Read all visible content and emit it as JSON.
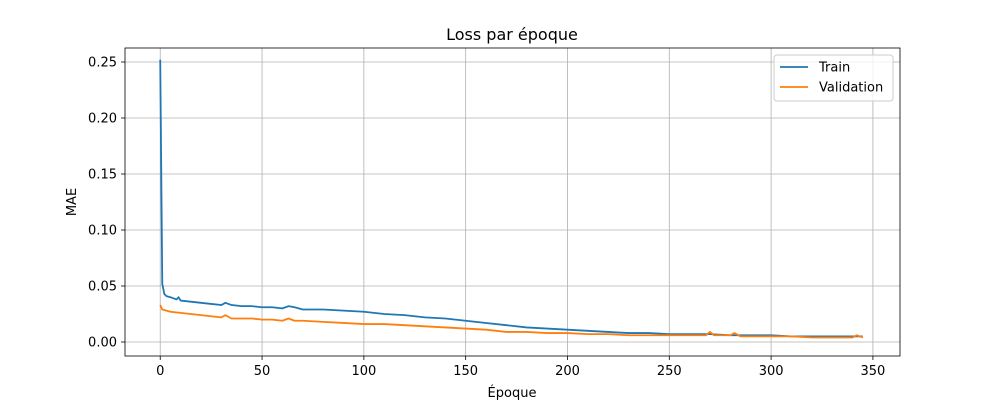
{
  "chart_data": {
    "type": "line",
    "title": "Loss par époque",
    "xlabel": "Époque",
    "ylabel": "MAE",
    "xlim": [
      -17.3,
      363.3
    ],
    "ylim": [
      -0.0125,
      0.2625
    ],
    "xticks": [
      0,
      50,
      100,
      150,
      200,
      250,
      300,
      350
    ],
    "yticks": [
      0.0,
      0.05,
      0.1,
      0.15,
      0.2,
      0.25
    ],
    "ytick_labels": [
      "0.00",
      "0.05",
      "0.10",
      "0.15",
      "0.20",
      "0.25"
    ],
    "grid": true,
    "legend_position": "top-right",
    "series": [
      {
        "name": "Train",
        "color": "#1f77b4",
        "points": [
          [
            0,
            0.252
          ],
          [
            1,
            0.052
          ],
          [
            2,
            0.043
          ],
          [
            3,
            0.041
          ],
          [
            5,
            0.04
          ],
          [
            8,
            0.038
          ],
          [
            9,
            0.04
          ],
          [
            10,
            0.037
          ],
          [
            15,
            0.036
          ],
          [
            20,
            0.035
          ],
          [
            25,
            0.034
          ],
          [
            30,
            0.033
          ],
          [
            32,
            0.035
          ],
          [
            35,
            0.033
          ],
          [
            40,
            0.032
          ],
          [
            45,
            0.032
          ],
          [
            50,
            0.031
          ],
          [
            55,
            0.031
          ],
          [
            60,
            0.03
          ],
          [
            63,
            0.032
          ],
          [
            66,
            0.031
          ],
          [
            70,
            0.029
          ],
          [
            80,
            0.029
          ],
          [
            90,
            0.028
          ],
          [
            100,
            0.027
          ],
          [
            110,
            0.025
          ],
          [
            120,
            0.024
          ],
          [
            130,
            0.022
          ],
          [
            140,
            0.021
          ],
          [
            150,
            0.019
          ],
          [
            160,
            0.017
          ],
          [
            170,
            0.015
          ],
          [
            180,
            0.013
          ],
          [
            190,
            0.012
          ],
          [
            200,
            0.011
          ],
          [
            210,
            0.01
          ],
          [
            220,
            0.009
          ],
          [
            230,
            0.008
          ],
          [
            240,
            0.008
          ],
          [
            250,
            0.007
          ],
          [
            260,
            0.007
          ],
          [
            270,
            0.007
          ],
          [
            280,
            0.006
          ],
          [
            290,
            0.006
          ],
          [
            300,
            0.006
          ],
          [
            310,
            0.005
          ],
          [
            320,
            0.005
          ],
          [
            330,
            0.005
          ],
          [
            340,
            0.005
          ],
          [
            345,
            0.005
          ]
        ]
      },
      {
        "name": "Validation",
        "color": "#ff7f0e",
        "points": [
          [
            0,
            0.033
          ],
          [
            1,
            0.029
          ],
          [
            3,
            0.028
          ],
          [
            5,
            0.027
          ],
          [
            10,
            0.026
          ],
          [
            15,
            0.025
          ],
          [
            20,
            0.024
          ],
          [
            25,
            0.023
          ],
          [
            30,
            0.022
          ],
          [
            32,
            0.024
          ],
          [
            35,
            0.021
          ],
          [
            40,
            0.021
          ],
          [
            45,
            0.021
          ],
          [
            50,
            0.02
          ],
          [
            55,
            0.02
          ],
          [
            60,
            0.019
          ],
          [
            63,
            0.021
          ],
          [
            66,
            0.019
          ],
          [
            70,
            0.019
          ],
          [
            80,
            0.018
          ],
          [
            90,
            0.017
          ],
          [
            100,
            0.016
          ],
          [
            110,
            0.016
          ],
          [
            120,
            0.015
          ],
          [
            130,
            0.014
          ],
          [
            140,
            0.013
          ],
          [
            150,
            0.012
          ],
          [
            160,
            0.011
          ],
          [
            170,
            0.009
          ],
          [
            180,
            0.009
          ],
          [
            190,
            0.008
          ],
          [
            200,
            0.008
          ],
          [
            210,
            0.007
          ],
          [
            220,
            0.007
          ],
          [
            230,
            0.006
          ],
          [
            240,
            0.006
          ],
          [
            250,
            0.006
          ],
          [
            260,
            0.006
          ],
          [
            268,
            0.006
          ],
          [
            270,
            0.009
          ],
          [
            272,
            0.006
          ],
          [
            280,
            0.006
          ],
          [
            282,
            0.008
          ],
          [
            285,
            0.005
          ],
          [
            290,
            0.005
          ],
          [
            300,
            0.005
          ],
          [
            310,
            0.005
          ],
          [
            320,
            0.004
          ],
          [
            330,
            0.004
          ],
          [
            340,
            0.004
          ],
          [
            342,
            0.006
          ],
          [
            345,
            0.004
          ]
        ]
      }
    ]
  }
}
